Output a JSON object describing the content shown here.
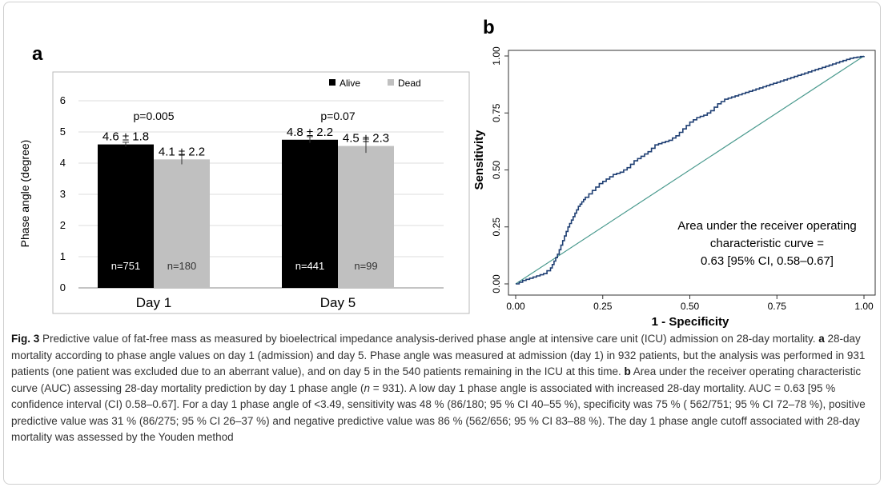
{
  "chart_data": [
    {
      "type": "bar",
      "panel_label": "a",
      "categories": [
        "Day 1",
        "Day 5"
      ],
      "ylabel": "Phase angle (degree)",
      "ylim": [
        0,
        6
      ],
      "yticks": [
        "0",
        "1",
        "2",
        "3",
        "4",
        "5",
        "6"
      ],
      "legend": [
        "Alive",
        "Dead"
      ],
      "legend_position": "top-right",
      "series": [
        {
          "name": "Alive",
          "color": "#000000",
          "values": [
            4.6,
            4.75
          ],
          "errors": [
            0.07,
            0.1
          ],
          "value_labels": [
            "4.6 ± 1.8",
            "4.8 ± 2.2"
          ],
          "n_labels": [
            "n=751",
            "n=441"
          ]
        },
        {
          "name": "Dead",
          "color": "#c0c0c0",
          "values": [
            4.12,
            4.55
          ],
          "errors": [
            0.16,
            0.22
          ],
          "value_labels": [
            "4.1 ± 2.2",
            "4.5 ± 2.3"
          ],
          "n_labels": [
            "n=180",
            "n=99"
          ]
        }
      ],
      "pvalues": [
        "p=0.005",
        "p=0.07"
      ]
    },
    {
      "type": "line",
      "panel_label": "b",
      "xlabel": "1 - Specificity",
      "ylabel": "Sensitivity",
      "xlim": [
        0,
        1
      ],
      "ylim": [
        0,
        1
      ],
      "xticks": [
        "0.00",
        "0.25",
        "0.50",
        "0.75",
        "1.00"
      ],
      "yticks": [
        "0.00",
        "0.25",
        "0.50",
        "0.75",
        "1.00"
      ],
      "annotation": [
        "Area under the receiver operating",
        "characteristic curve =",
        "0.63 [95% CI, 0.58–0.67]"
      ],
      "roc_color": "#1f3f73",
      "reference_color": "#4a9a8e",
      "roc_curve": {
        "x": [
          0,
          0.02,
          0.04,
          0.06,
          0.08,
          0.1,
          0.11,
          0.12,
          0.13,
          0.14,
          0.15,
          0.16,
          0.17,
          0.18,
          0.19,
          0.2,
          0.22,
          0.24,
          0.26,
          0.28,
          0.3,
          0.32,
          0.34,
          0.36,
          0.38,
          0.4,
          0.42,
          0.44,
          0.46,
          0.48,
          0.5,
          0.52,
          0.54,
          0.56,
          0.58,
          0.6,
          0.62,
          0.64,
          0.66,
          0.68,
          0.7,
          0.72,
          0.74,
          0.76,
          0.78,
          0.8,
          0.82,
          0.84,
          0.86,
          0.88,
          0.9,
          0.92,
          0.94,
          0.96,
          0.98,
          1.0
        ],
        "y": [
          0,
          0.015,
          0.025,
          0.035,
          0.045,
          0.07,
          0.1,
          0.13,
          0.17,
          0.21,
          0.25,
          0.28,
          0.31,
          0.34,
          0.36,
          0.38,
          0.41,
          0.44,
          0.46,
          0.48,
          0.49,
          0.51,
          0.54,
          0.56,
          0.58,
          0.61,
          0.62,
          0.63,
          0.65,
          0.68,
          0.71,
          0.73,
          0.74,
          0.76,
          0.79,
          0.81,
          0.82,
          0.83,
          0.84,
          0.85,
          0.86,
          0.87,
          0.88,
          0.89,
          0.9,
          0.91,
          0.92,
          0.93,
          0.94,
          0.95,
          0.96,
          0.97,
          0.98,
          0.99,
          0.995,
          1.0
        ]
      }
    }
  ],
  "caption": {
    "fig_label": "Fig. 3",
    "intro": " Predictive value of fat-free mass as measured by bioelectrical impedance analysis-derived phase angle at intensive care unit (ICU) admission on 28-day mortality. ",
    "a_label": "a",
    "a_text": " 28-day mortality according to phase angle values on day 1 (admission) and day 5. Phase angle was measured at admission (day 1) in 932 patients, but the analysis was performed in 931 patients (one patient was excluded due to an aberrant value), and on day 5 in the 540 patients remaining in the ICU at this time. ",
    "b_label": "b",
    "b_text_1": " Area under the receiver operating characteristic curve (AUC) assessing 28-day mortality prediction by day 1 phase angle (",
    "b_n_italic": "n",
    "b_text_2": " = 931). A low day 1 phase angle is associated with increased 28-day mortality. AUC = 0.63 [95 % confidence interval (CI) 0.58–0.67]. For a day 1 phase angle of <3.49, sensitivity was 48 % (86/180; 95 % CI 40–55 %), specificity was 75 % ( 562/751; 95 % CI 72–78 %), positive predictive value was 31 % (86/275; 95 % CI 26–37 %) and negative predictive value was 86 % (562/656; 95 % CI 83–88 %). The day 1 phase angle cutoff associated with 28-day mortality was assessed by the Youden method"
  }
}
